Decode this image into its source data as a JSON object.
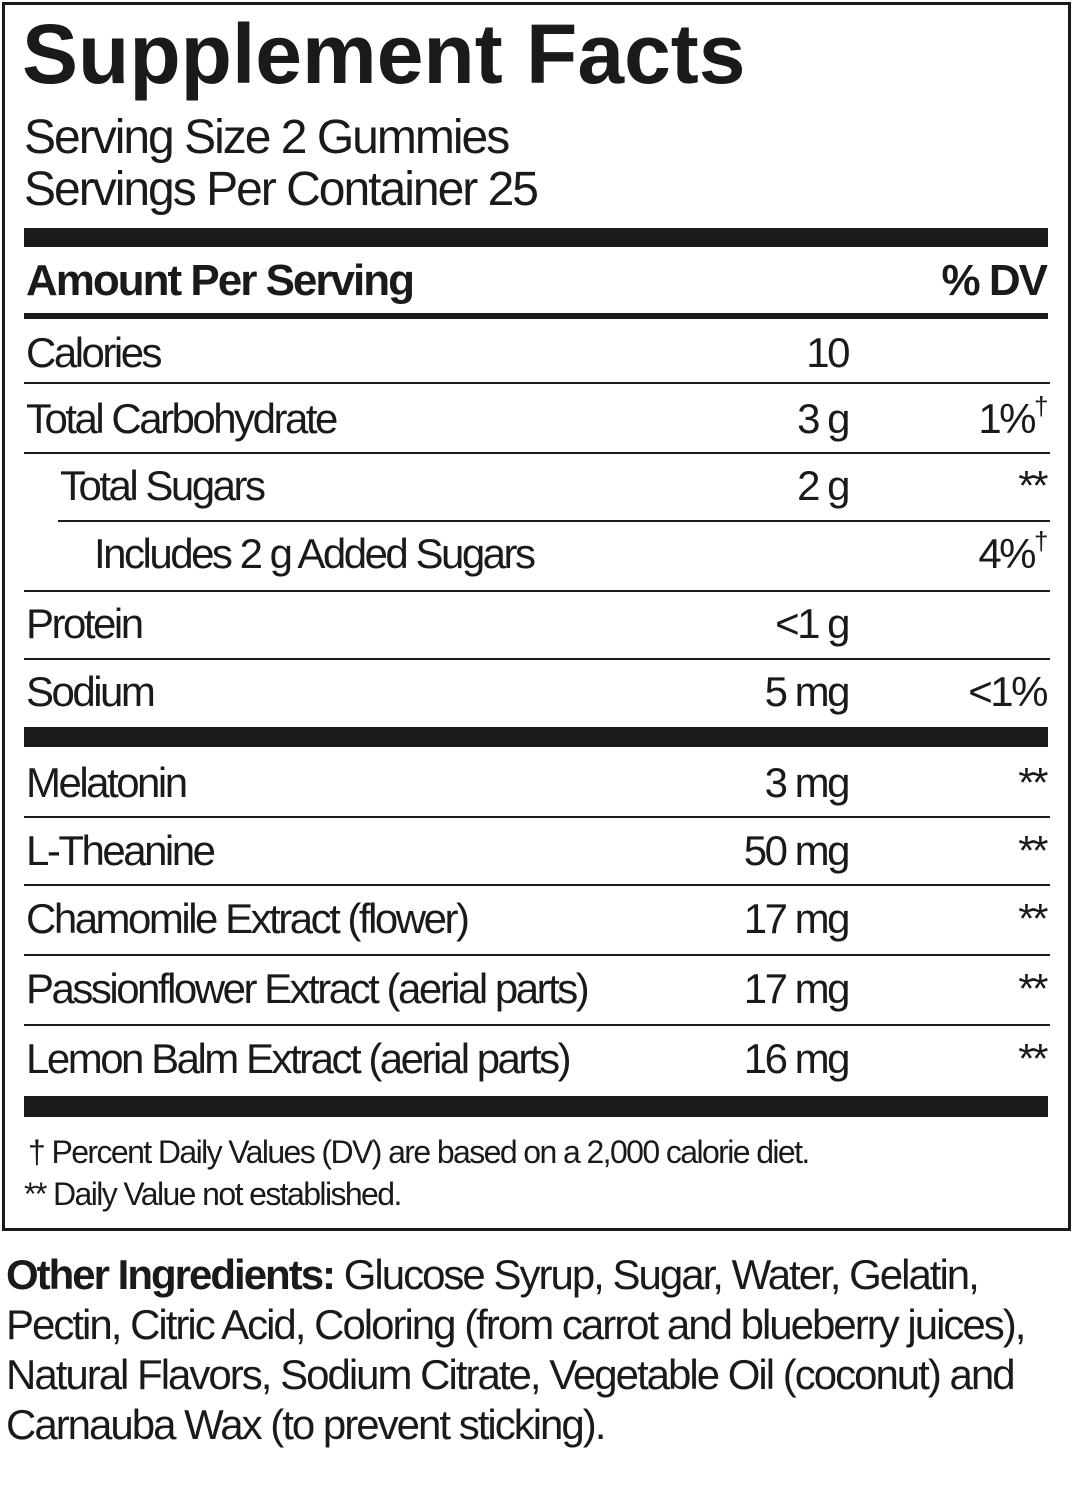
{
  "title": "Supplement Facts",
  "serving_size": "Serving Size 2 Gummies",
  "servings_per_container": "Servings Per Container 25",
  "header": {
    "amount": "Amount Per Serving",
    "dv": "% DV"
  },
  "rows": [
    {
      "name": "Calories",
      "amount": "10",
      "dv": ""
    },
    {
      "name": "Total Carbohydrate",
      "amount": "3 g",
      "dv": "1%",
      "mark": "†"
    },
    {
      "name": "Total Sugars",
      "amount": "2 g",
      "dv": "**"
    },
    {
      "name": "Includes 2 g Added Sugars",
      "amount": "",
      "dv": "4%",
      "mark": "†"
    },
    {
      "name": "Protein",
      "amount": "<1 g",
      "dv": ""
    },
    {
      "name": "Sodium",
      "amount": "5 mg",
      "dv": "<1%"
    },
    {
      "name": "Melatonin",
      "amount": "3 mg",
      "dv": "**"
    },
    {
      "name": "L-Theanine",
      "amount": "50 mg",
      "dv": "**"
    },
    {
      "name": "Chamomile Extract (flower)",
      "amount": "17 mg",
      "dv": "**"
    },
    {
      "name": "Passionflower Extract (aerial parts)",
      "amount": "17 mg",
      "dv": "**"
    },
    {
      "name": "Lemon Balm Extract (aerial parts)",
      "amount": "16 mg",
      "dv": "**"
    }
  ],
  "footnotes": [
    "† Percent Daily Values (DV) are based on a 2,000 calorie diet.",
    "** Daily Value not established."
  ],
  "other_ingredients": {
    "label": "Other Ingredients:",
    "lines": [
      " Glucose Syrup, Sugar, Water, Gelatin,",
      "Pectin, Citric Acid, Coloring (from carrot and blueberry",
      "juices), Natural Flavors, Sodium Citrate, Vegetable Oil",
      "(coconut) and Carnauba Wax (to prevent sticking)."
    ]
  }
}
